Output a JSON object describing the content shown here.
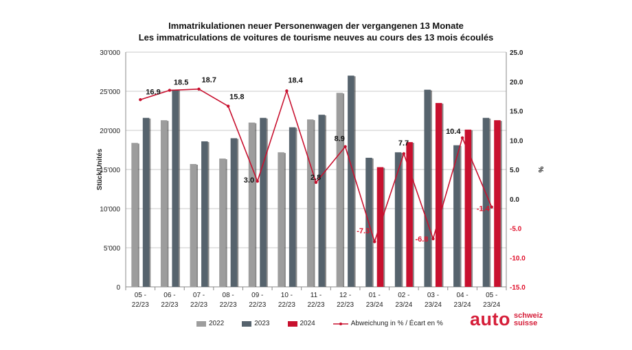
{
  "chart_data": {
    "type": "bar",
    "title": "Immatrikulationen neuer Personenwagen der vergangenen 13 Monate",
    "subtitle": "Les immatriculations de voitures de tourisme neuves au cours des 13 mois écoulés",
    "ylabel": "Stück/Unités",
    "y2label": "%",
    "ylim": [
      0,
      30000
    ],
    "y2lim": [
      -15,
      25
    ],
    "yticks": [
      "0",
      "5'000",
      "10'000",
      "15'000",
      "20'000",
      "25'000",
      "30'000"
    ],
    "y2ticks": [
      "-15.0",
      "-10.0",
      "-5.0",
      "0.0",
      "5.0",
      "10.0",
      "15.0",
      "20.0",
      "25.0"
    ],
    "categories": [
      [
        "05 -",
        "22/23"
      ],
      [
        "06 -",
        "22/23"
      ],
      [
        "07 -",
        "22/23"
      ],
      [
        "08 -",
        "22/23"
      ],
      [
        "09 -",
        "22/23"
      ],
      [
        "10 -",
        "22/23"
      ],
      [
        "11 -",
        "22/23"
      ],
      [
        "12 -",
        "22/23"
      ],
      [
        "01 -",
        "23/24"
      ],
      [
        "02 -",
        "23/24"
      ],
      [
        "03 -",
        "23/24"
      ],
      [
        "04 -",
        "23/24"
      ],
      [
        "05 -",
        "23/24"
      ]
    ],
    "series": [
      {
        "name": "2022",
        "color": "#9d9d9d",
        "values": [
          18400,
          21300,
          15700,
          16400,
          21000,
          17200,
          21400,
          24800,
          null,
          null,
          null,
          null,
          null
        ]
      },
      {
        "name": "2023",
        "color": "#56636d",
        "values": [
          21600,
          25200,
          18600,
          19000,
          21600,
          20400,
          22000,
          27000,
          16500,
          17200,
          25200,
          18100,
          21600
        ]
      },
      {
        "name": "2024",
        "color": "#c8102e",
        "values": [
          null,
          null,
          null,
          null,
          null,
          null,
          null,
          null,
          15300,
          18500,
          23500,
          20100,
          21300
        ]
      }
    ],
    "line": {
      "name": "Abweichung in % / Écart en %",
      "color": "#c8102e",
      "values": [
        16.9,
        18.5,
        18.7,
        15.8,
        3.0,
        18.4,
        2.8,
        8.9,
        -7.3,
        7.7,
        -6.8,
        10.4,
        -1.4
      ],
      "labels": [
        "16.9",
        "18.5",
        "18.7",
        "15.8",
        "3.0",
        "18.4",
        "2.8",
        "8.9",
        "-7.3",
        "7.7",
        "-6.8",
        "10.4",
        "-1.4"
      ],
      "negative_label_color": "#e0102b"
    },
    "grid": true,
    "legend_position": "bottom"
  },
  "logo": {
    "main": "auto",
    "line1": "schweiz",
    "line2": "suisse"
  }
}
